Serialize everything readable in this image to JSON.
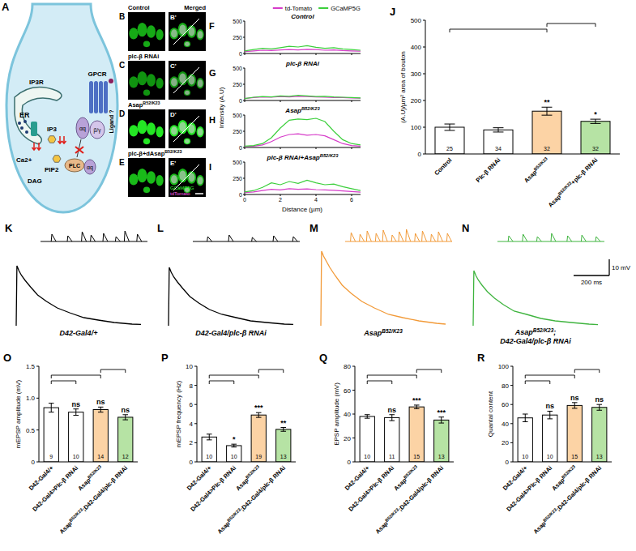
{
  "diagram": {
    "letter": "A",
    "labels": {
      "ip3r": "IP3R",
      "er": "ER",
      "ca": "Ca2+",
      "ip3": "IP3",
      "pip2": "PIP2",
      "dag": "DAG",
      "plc": "PLC",
      "aq_top": "αq",
      "aq_bottom": "αq",
      "bg": "β/γ",
      "gpcr": "GPCR",
      "ligand": "Ligand ?"
    }
  },
  "images": {
    "letters": [
      "B",
      "C",
      "D",
      "E"
    ],
    "merged_letters": [
      "B'",
      "C'",
      "D'",
      "E'"
    ],
    "labels": [
      "Control",
      "plc-β RNAi",
      "AsapB52/K23",
      "plc-β+dAsapB52/K23"
    ],
    "merged_label": "Merged",
    "channels": [
      "GCaMP5G",
      "tdTomato"
    ]
  },
  "profile_axes": {
    "ylabel": "Intensity (A.U)",
    "xlabel": "Distance (µm)"
  },
  "chart_data": [
    {
      "letter": "F",
      "type": "line",
      "title": "Control",
      "x": [
        0,
        0.5,
        1,
        1.5,
        2,
        2.5,
        3,
        3.5,
        4,
        4.5,
        5,
        5.5,
        6,
        6.5
      ],
      "xlim": [
        0,
        6.5
      ],
      "xticks": [
        0,
        2,
        4,
        6
      ],
      "ylim": [
        0,
        500
      ],
      "yticks": [
        0,
        250,
        500
      ],
      "tick_labels": "y",
      "legend": "top",
      "series": [
        {
          "name": "td-Tomato",
          "color": "#d63cc9",
          "values": [
            30,
            40,
            50,
            45,
            55,
            60,
            55,
            65,
            60,
            50,
            55,
            45,
            40,
            35
          ]
        },
        {
          "name": "GCaMP5G",
          "color": "#3ccf3c",
          "values": [
            40,
            60,
            80,
            70,
            90,
            110,
            100,
            120,
            95,
            80,
            90,
            70,
            60,
            50
          ]
        }
      ]
    },
    {
      "letter": "G",
      "type": "line",
      "title": "plc-β RNAi",
      "x": [
        0,
        0.5,
        1,
        1.5,
        2,
        2.5,
        3,
        3.5,
        4,
        4.5,
        5,
        5.5,
        6,
        6.5
      ],
      "xlim": [
        0,
        6.5
      ],
      "xticks": [
        0,
        2,
        4,
        6
      ],
      "ylim": [
        0,
        500
      ],
      "yticks": [
        0,
        250,
        500
      ],
      "tick_labels": "y",
      "series": [
        {
          "name": "td-Tomato",
          "color": "#d63cc9",
          "values": [
            30,
            45,
            55,
            50,
            60,
            55,
            65,
            60,
            55,
            50,
            45,
            45,
            40,
            35
          ]
        },
        {
          "name": "GCaMP5G",
          "color": "#3ccf3c",
          "values": [
            30,
            50,
            60,
            55,
            70,
            65,
            80,
            70,
            60,
            65,
            55,
            50,
            45,
            40
          ]
        }
      ]
    },
    {
      "letter": "H",
      "type": "line",
      "title": "AsapB52/K23",
      "x": [
        0,
        0.5,
        1,
        1.5,
        2,
        2.5,
        3,
        3.5,
        4,
        4.5,
        5,
        5.5,
        6,
        6.5
      ],
      "xlim": [
        0,
        6.5
      ],
      "xticks": [
        0,
        2,
        4,
        6
      ],
      "ylim": [
        0,
        500
      ],
      "yticks": [
        0,
        250,
        500
      ],
      "tick_labels": "y",
      "series": [
        {
          "name": "td-Tomato",
          "color": "#d63cc9",
          "values": [
            15,
            20,
            40,
            90,
            160,
            200,
            210,
            190,
            200,
            180,
            120,
            60,
            30,
            20
          ]
        },
        {
          "name": "GCaMP5G",
          "color": "#3ccf3c",
          "values": [
            20,
            30,
            60,
            150,
            300,
            420,
            440,
            430,
            450,
            400,
            250,
            120,
            60,
            40
          ]
        }
      ]
    },
    {
      "letter": "I",
      "type": "line",
      "title": "plc-β RNAi+AsapB52/K23",
      "x": [
        0,
        0.5,
        1,
        1.5,
        2,
        2.5,
        3,
        3.5,
        4,
        4.5,
        5,
        5.5,
        6,
        6.5
      ],
      "xlim": [
        0,
        6.5
      ],
      "xticks": [
        0,
        2,
        4,
        6
      ],
      "ylim": [
        0,
        500
      ],
      "yticks": [
        0,
        250,
        500
      ],
      "series": [
        {
          "name": "td-Tomato",
          "color": "#d63cc9",
          "values": [
            30,
            40,
            60,
            80,
            70,
            90,
            80,
            85,
            75,
            70,
            65,
            55,
            45,
            35
          ]
        },
        {
          "name": "GCaMP5G",
          "color": "#3ccf3c",
          "values": [
            40,
            60,
            110,
            180,
            150,
            200,
            170,
            220,
            180,
            150,
            160,
            120,
            90,
            60
          ]
        }
      ]
    },
    {
      "letter": "J",
      "type": "bar",
      "ylabel": "(A.U)/µm² area of bouton",
      "categories": [
        "Control",
        "Plc-β RNAi",
        "AsapB52/K23",
        "AsapB52/K23+plc-β RNAi"
      ],
      "values": [
        100,
        90,
        160,
        122
      ],
      "errors": [
        12,
        8,
        15,
        8
      ],
      "n": [
        25,
        34,
        32,
        32
      ],
      "colors": [
        "#ffffff",
        "#ffffff",
        "#fcd3a5",
        "#b6e3a4"
      ],
      "ylim": [
        0,
        500
      ],
      "yticks": [
        0,
        100,
        200,
        300,
        400,
        500
      ],
      "comparisons": [
        {
          "pair": [
            0,
            2
          ],
          "label": "**"
        },
        {
          "pair": [
            2,
            3
          ],
          "label": "*"
        }
      ]
    },
    {
      "letter": "O",
      "type": "bar",
      "ylabel": "mEPSP amplitude (mV)",
      "categories": [
        "D42-Gal4/+",
        "D42-Gal4>Plc-β RNAi",
        "AsapB52/K23",
        "AsapB52/K23;D42-Gal4/plc-β RNAi"
      ],
      "values": [
        0.85,
        0.78,
        0.82,
        0.7
      ],
      "errors": [
        0.07,
        0.05,
        0.04,
        0.04
      ],
      "n": [
        9,
        10,
        14,
        12
      ],
      "colors": [
        "#ffffff",
        "#ffffff",
        "#fcd3a5",
        "#b6e3a4"
      ],
      "ylim": [
        0,
        1.5
      ],
      "yticks": [
        0,
        0.5,
        {
          "value": 1,
          "label": "1.0"
        },
        1.5
      ],
      "comparisons": [
        {
          "pair": [
            0,
            1
          ],
          "label": "ns"
        },
        {
          "pair": [
            0,
            2
          ],
          "label": "ns"
        },
        {
          "pair": [
            2,
            3
          ],
          "label": "ns"
        }
      ]
    },
    {
      "letter": "P",
      "type": "bar",
      "ylabel": "mEPSP frequency (Hz)",
      "categories": [
        "D42-Gal4/+",
        "D42-Gal4>Plc-β RNAi",
        "AsapB52/K23",
        "AsapB52/K23;D42-Gal4/plc-β RNAi"
      ],
      "values": [
        2.6,
        1.7,
        4.9,
        3.4
      ],
      "errors": [
        0.3,
        0.15,
        0.25,
        0.2
      ],
      "n": [
        10,
        10,
        19,
        13
      ],
      "colors": [
        "#ffffff",
        "#ffffff",
        "#fcd3a5",
        "#b6e3a4"
      ],
      "ylim": [
        0,
        10
      ],
      "yticks": [
        0,
        2,
        4,
        6,
        8,
        10
      ],
      "comparisons": [
        {
          "pair": [
            0,
            1
          ],
          "label": "*"
        },
        {
          "pair": [
            0,
            2
          ],
          "label": "***"
        },
        {
          "pair": [
            2,
            3
          ],
          "label": "**"
        }
      ]
    },
    {
      "letter": "Q",
      "type": "bar",
      "ylabel": "EPSP amplitude (mV)",
      "categories": [
        "D42-Gal4/+",
        "D42-Gal4>Plc-β RNAi",
        "AsapB52/K23",
        "AsapB52/K23;D42-Gal4/plc-β RNAi"
      ],
      "values": [
        38,
        37,
        46,
        35
      ],
      "errors": [
        1.5,
        2.5,
        1.5,
        2.5
      ],
      "n": [
        10,
        11,
        15,
        13
      ],
      "colors": [
        "#ffffff",
        "#ffffff",
        "#fcd3a5",
        "#b6e3a4"
      ],
      "ylim": [
        0,
        80
      ],
      "yticks": [
        0,
        20,
        40,
        60,
        80
      ],
      "comparisons": [
        {
          "pair": [
            0,
            1
          ],
          "label": "ns"
        },
        {
          "pair": [
            0,
            2
          ],
          "label": "***"
        },
        {
          "pair": [
            2,
            3
          ],
          "label": "***"
        }
      ]
    },
    {
      "letter": "R",
      "type": "bar",
      "ylabel": "Quantal content",
      "categories": [
        "D42-Gal4/+",
        "D42-Gal4>Plc-β RNAi",
        "AsapB52/K23",
        "AsapB52/K23;D42-Gal4/plc-β RNAi"
      ],
      "values": [
        46,
        49,
        59,
        57
      ],
      "errors": [
        4,
        4,
        3,
        3
      ],
      "n": [
        10,
        10,
        15,
        13
      ],
      "colors": [
        "#ffffff",
        "#ffffff",
        "#fcd3a5",
        "#b6e3a4"
      ],
      "ylim": [
        0,
        100
      ],
      "yticks": [
        0,
        20,
        40,
        60,
        80,
        100
      ],
      "comparisons": [
        {
          "pair": [
            0,
            1
          ],
          "label": "ns"
        },
        {
          "pair": [
            0,
            2
          ],
          "label": "ns"
        },
        {
          "pair": [
            2,
            3
          ],
          "label": "ns"
        }
      ]
    }
  ],
  "traces": {
    "time_ms": [
      0,
      4,
      8,
      15,
      30,
      50,
      80,
      120,
      170,
      230,
      300,
      380,
      460,
      550,
      650,
      700
    ],
    "scale_bar": {
      "mv": 10,
      "ms": 200,
      "mv_label": "10 mV",
      "ms_label": "200 ms"
    },
    "items": [
      {
        "letter": "K",
        "label": "D42-Gal4/+",
        "color": "#000000",
        "epsp": [
          0,
          37,
          36,
          34,
          31,
          28,
          24,
          19,
          15,
          11,
          8,
          5,
          3.5,
          2,
          1,
          0.8
        ],
        "minis": [
          [
            60,
            0.9
          ],
          [
            150,
            0.7
          ],
          [
            230,
            1.2
          ],
          [
            280,
            0.8
          ],
          [
            350,
            1.0
          ],
          [
            420,
            0.6
          ],
          [
            470,
            1.3
          ],
          [
            540,
            0.9
          ]
        ]
      },
      {
        "letter": "L",
        "label": "D42-Gal4/plc-β RNAi",
        "color": "#000000",
        "epsp": [
          0,
          36,
          35,
          33,
          30,
          27,
          23,
          18,
          14,
          10,
          7,
          5,
          3,
          2,
          1,
          0.8
        ],
        "minis": [
          [
            80,
            0.6
          ],
          [
            200,
            0.8
          ],
          [
            330,
            0.5
          ],
          [
            450,
            0.7
          ],
          [
            560,
            0.6
          ]
        ]
      },
      {
        "letter": "M",
        "label": "AsapB52/K23",
        "color": "#f29a38",
        "epsp": [
          0,
          46,
          45,
          43,
          40,
          36,
          31,
          25,
          20,
          15,
          11,
          7,
          5,
          3,
          1.5,
          1
        ],
        "minis": [
          [
            30,
            1.1
          ],
          [
            80,
            0.9
          ],
          [
            120,
            1.3
          ],
          [
            170,
            1.0
          ],
          [
            210,
            1.4
          ],
          [
            260,
            0.8
          ],
          [
            300,
            1.2
          ],
          [
            340,
            1.5
          ],
          [
            390,
            1.0
          ],
          [
            430,
            1.3
          ],
          [
            480,
            0.9
          ],
          [
            520,
            1.2
          ],
          [
            570,
            1.0
          ]
        ]
      },
      {
        "letter": "N",
        "label": "AsapB52/K23; D42-Gal4/plc-β RNAi",
        "color": "#3fb43f",
        "epsp": [
          0,
          34,
          33,
          31,
          28,
          25,
          21,
          17,
          13,
          9,
          7,
          4.5,
          3,
          2,
          1,
          0.7
        ],
        "minis": [
          [
            60,
            0.7
          ],
          [
            140,
            0.9
          ],
          [
            220,
            0.6
          ],
          [
            300,
            1.0
          ],
          [
            390,
            0.7
          ],
          [
            470,
            0.8
          ],
          [
            550,
            0.6
          ]
        ]
      }
    ]
  }
}
